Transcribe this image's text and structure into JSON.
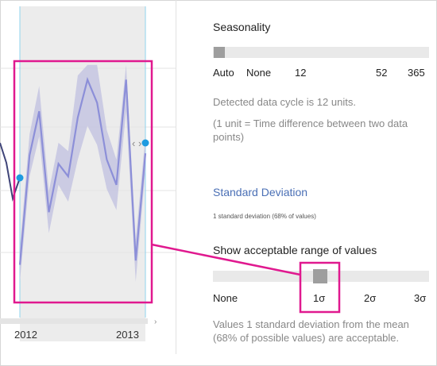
{
  "chart": {
    "x_labels": [
      "2012",
      "2013"
    ],
    "series_values": [
      0.1,
      0.62,
      0.83,
      0.35,
      0.58,
      0.52,
      0.8,
      0.98,
      0.87,
      0.6,
      0.48,
      0.98,
      0.12,
      0.63
    ],
    "band_half_width": [
      0.08,
      0.1,
      0.12,
      0.1,
      0.1,
      0.12,
      0.2,
      0.22,
      0.2,
      0.14,
      0.12,
      0.15,
      0.1,
      0.08
    ],
    "expand_arrows": "‹ ›",
    "accent_colors": {
      "series": "#8c8fd8",
      "band": "#c5c6e2",
      "highlight": "#e0198f",
      "marker": "#1e9be0"
    }
  },
  "settings": {
    "seasonality": {
      "label": "Seasonality",
      "ticks": [
        "Auto",
        "None",
        "12",
        "52",
        "365"
      ],
      "selected": "Auto",
      "cycle_text": "Detected data cycle is 12 units.",
      "unit_text": "(1 unit = Time difference between two data points)"
    },
    "std_dev": {
      "link": "Standard Deviation",
      "note": "1 standard deviation (68% of values)"
    },
    "range": {
      "label": "Show acceptable range of values",
      "ticks": [
        "None",
        "1σ",
        "2σ",
        "3σ"
      ],
      "selected": "1σ",
      "description": "Values 1 standard deviation from the mean (68% of possible values) are acceptable."
    }
  }
}
